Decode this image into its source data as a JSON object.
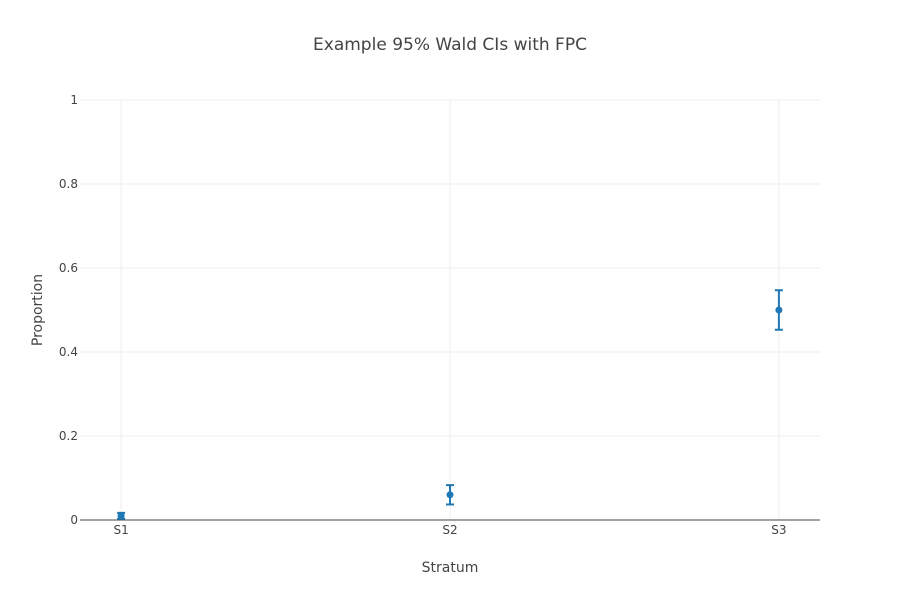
{
  "chart_data": {
    "type": "scatter",
    "title": "Example 95% Wald CIs with FPC",
    "xlabel": "Stratum",
    "ylabel": "Proportion",
    "categories": [
      "S1",
      "S2",
      "S3"
    ],
    "series": [
      {
        "values": [
          0.01,
          0.06,
          0.5
        ],
        "lower": [
          0.003,
          0.037,
          0.453
        ],
        "upper": [
          0.017,
          0.083,
          0.547
        ],
        "color": "#1f77b4"
      }
    ],
    "ylim": [
      0,
      1
    ],
    "yticks": [
      0,
      0.2,
      0.4,
      0.6,
      0.8,
      1
    ],
    "ytick_labels": [
      "0",
      "0.2",
      "0.4",
      "0.6",
      "0.8",
      "1"
    ],
    "grid": true,
    "legend": "none"
  }
}
